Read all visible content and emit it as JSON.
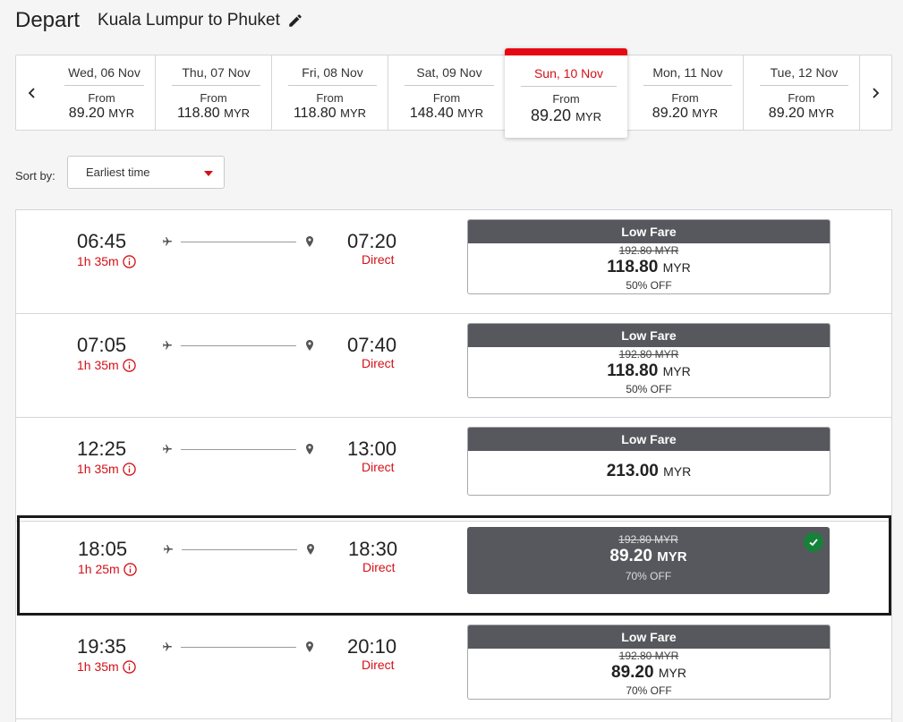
{
  "header": {
    "title": "Depart",
    "route": "Kuala Lumpur to Phuket"
  },
  "dates": [
    {
      "label": "Wed, 06 Nov",
      "from": "From",
      "price": "89.20",
      "currency": "MYR",
      "selected": false
    },
    {
      "label": "Thu, 07 Nov",
      "from": "From",
      "price": "118.80",
      "currency": "MYR",
      "selected": false
    },
    {
      "label": "Fri, 08 Nov",
      "from": "From",
      "price": "118.80",
      "currency": "MYR",
      "selected": false
    },
    {
      "label": "Sat, 09 Nov",
      "from": "From",
      "price": "148.40",
      "currency": "MYR",
      "selected": false
    },
    {
      "label": "Sun, 10 Nov",
      "from": "From",
      "price": "89.20",
      "currency": "MYR",
      "selected": true
    },
    {
      "label": "Mon, 11 Nov",
      "from": "From",
      "price": "89.20",
      "currency": "MYR",
      "selected": false
    },
    {
      "label": "Tue, 12 Nov",
      "from": "From",
      "price": "89.20",
      "currency": "MYR",
      "selected": false
    }
  ],
  "sort": {
    "label": "Sort by:",
    "value": "Earliest time"
  },
  "flights": [
    {
      "depart": "06:45",
      "duration": "1h 35m",
      "arrive": "07:20",
      "stops": "Direct",
      "fare": {
        "name": "Low Fare",
        "old_price": "192.80 MYR",
        "price": "118.80",
        "currency": "MYR",
        "discount": "50% OFF"
      }
    },
    {
      "depart": "07:05",
      "duration": "1h 35m",
      "arrive": "07:40",
      "stops": "Direct",
      "fare": {
        "name": "Low Fare",
        "old_price": "192.80 MYR",
        "price": "118.80",
        "currency": "MYR",
        "discount": "50% OFF"
      }
    },
    {
      "depart": "12:25",
      "duration": "1h 35m",
      "arrive": "13:00",
      "stops": "Direct",
      "fare": {
        "name": "Low Fare",
        "old_price": "",
        "price": "213.00",
        "currency": "MYR",
        "discount": ""
      }
    },
    {
      "depart": "18:05",
      "duration": "1h 25m",
      "arrive": "18:30",
      "stops": "Direct",
      "fare": {
        "name": "",
        "old_price": "192.80 MYR",
        "price": "89.20",
        "currency": "MYR",
        "discount": "70% OFF"
      }
    },
    {
      "depart": "19:35",
      "duration": "1h 35m",
      "arrive": "20:10",
      "stops": "Direct",
      "fare": {
        "name": "Low Fare",
        "old_price": "192.80 MYR",
        "price": "89.20",
        "currency": "MYR",
        "discount": "70% OFF"
      }
    }
  ],
  "colors": {
    "accent": "#e50914",
    "accent_text": "#d31017",
    "fare_header": "#57585d",
    "selected_check": "#16813a"
  },
  "icons": {
    "edit": "pencil-icon",
    "prev": "chevron-left-icon",
    "next": "chevron-right-icon",
    "info": "info-icon",
    "plane": "plane-icon",
    "pin": "location-pin-icon",
    "check": "check-icon"
  }
}
